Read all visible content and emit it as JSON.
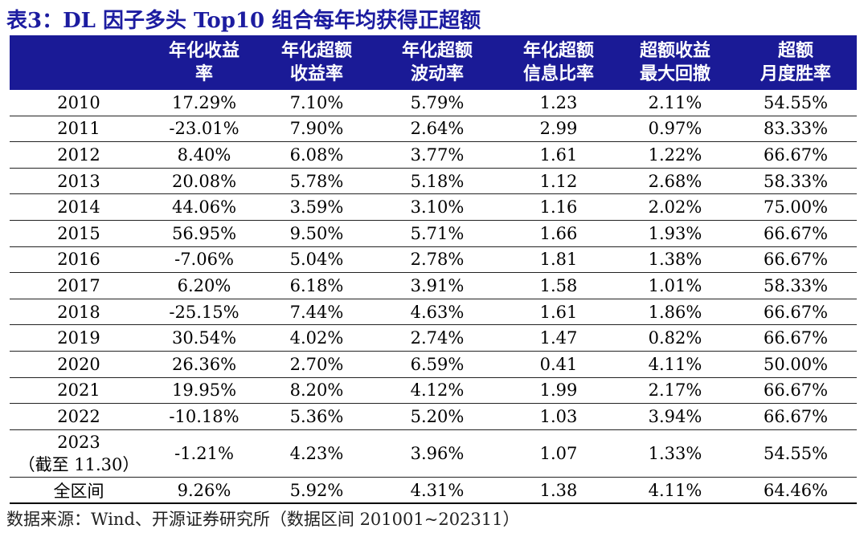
{
  "title": "表3：DL 因子多头 Top10 组合每年均获得正超额",
  "columns": [
    {
      "line1": "",
      "line2": ""
    },
    {
      "line1": "年化收益",
      "line2": "率"
    },
    {
      "line1": "年化超额",
      "line2": "收益率"
    },
    {
      "line1": "年化超额",
      "line2": "波动率"
    },
    {
      "line1": "年化超额",
      "line2": "信息比率"
    },
    {
      "line1": "超额收益",
      "line2": "最大回撤"
    },
    {
      "line1": "超额",
      "line2": "月度胜率"
    }
  ],
  "rows": [
    {
      "year": "2010",
      "year2": "",
      "cells": [
        "17.29%",
        "7.10%",
        "5.79%",
        "1.23",
        "2.11%",
        "54.55%"
      ]
    },
    {
      "year": "2011",
      "year2": "",
      "cells": [
        "-23.01%",
        "7.90%",
        "2.64%",
        "2.99",
        "0.97%",
        "83.33%"
      ]
    },
    {
      "year": "2012",
      "year2": "",
      "cells": [
        "8.40%",
        "6.08%",
        "3.77%",
        "1.61",
        "1.22%",
        "66.67%"
      ]
    },
    {
      "year": "2013",
      "year2": "",
      "cells": [
        "20.08%",
        "5.78%",
        "5.18%",
        "1.12",
        "2.68%",
        "58.33%"
      ]
    },
    {
      "year": "2014",
      "year2": "",
      "cells": [
        "44.06%",
        "3.59%",
        "3.10%",
        "1.16",
        "2.02%",
        "75.00%"
      ]
    },
    {
      "year": "2015",
      "year2": "",
      "cells": [
        "56.95%",
        "9.50%",
        "5.71%",
        "1.66",
        "1.93%",
        "66.67%"
      ]
    },
    {
      "year": "2016",
      "year2": "",
      "cells": [
        "-7.06%",
        "5.04%",
        "2.78%",
        "1.81",
        "1.38%",
        "66.67%"
      ]
    },
    {
      "year": "2017",
      "year2": "",
      "cells": [
        "6.20%",
        "6.18%",
        "3.91%",
        "1.58",
        "1.01%",
        "58.33%"
      ]
    },
    {
      "year": "2018",
      "year2": "",
      "cells": [
        "-25.15%",
        "7.44%",
        "4.63%",
        "1.61",
        "1.86%",
        "66.67%"
      ]
    },
    {
      "year": "2019",
      "year2": "",
      "cells": [
        "30.54%",
        "4.02%",
        "2.74%",
        "1.47",
        "0.82%",
        "66.67%"
      ]
    },
    {
      "year": "2020",
      "year2": "",
      "cells": [
        "26.36%",
        "2.70%",
        "6.59%",
        "0.41",
        "4.11%",
        "50.00%"
      ]
    },
    {
      "year": "2021",
      "year2": "",
      "cells": [
        "19.95%",
        "8.20%",
        "4.12%",
        "1.99",
        "2.17%",
        "66.67%"
      ]
    },
    {
      "year": "2022",
      "year2": "",
      "cells": [
        "-10.18%",
        "5.36%",
        "5.20%",
        "1.03",
        "3.94%",
        "66.67%"
      ]
    },
    {
      "year": "2023",
      "year2": "（截至 11.30）",
      "cells": [
        "-1.21%",
        "4.23%",
        "3.96%",
        "1.07",
        "1.33%",
        "54.55%"
      ]
    },
    {
      "year": "全区间",
      "year2": "",
      "cells": [
        "9.26%",
        "5.92%",
        "4.31%",
        "1.38",
        "4.11%",
        "64.46%"
      ]
    }
  ],
  "source": "数据来源：Wind、开源证券研究所（数据区间 201001~202311）"
}
